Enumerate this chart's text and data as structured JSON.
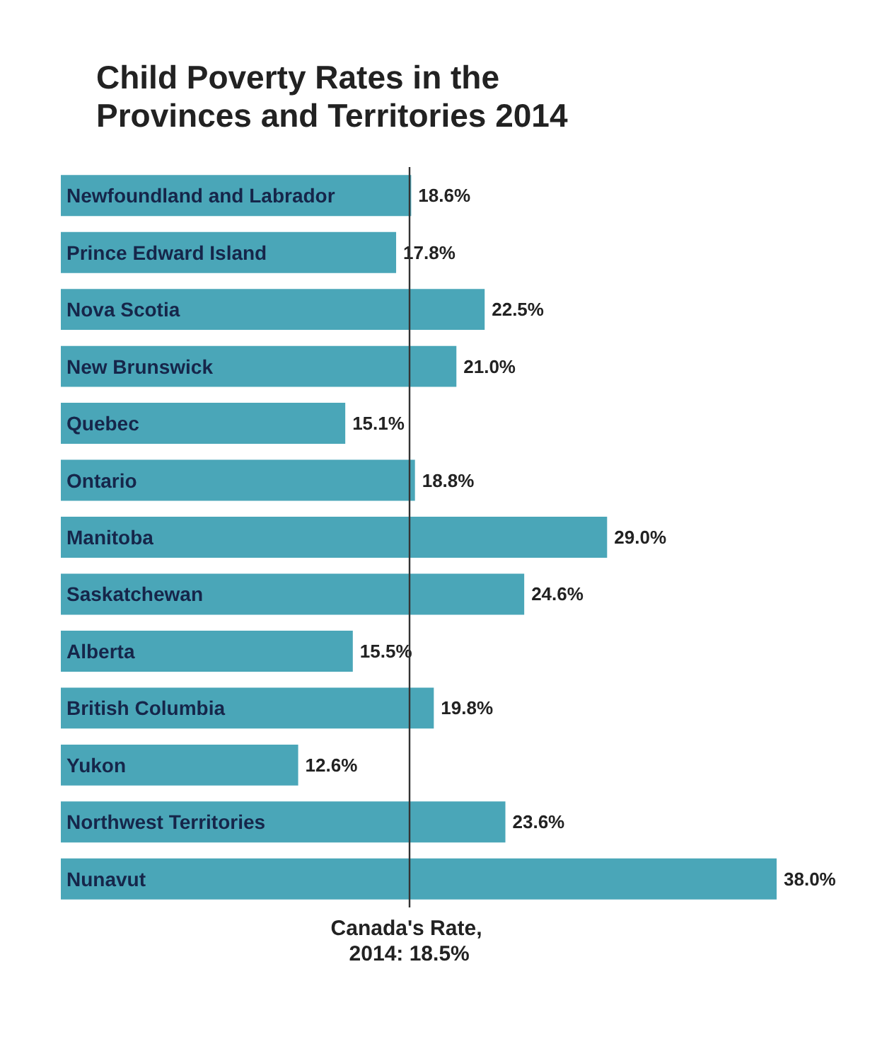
{
  "chart_data": {
    "type": "bar",
    "orientation": "horizontal",
    "title": "Child Poverty Rates in the Provinces and Territories 2014",
    "categories": [
      "Newfoundland and Labrador",
      "Prince Edward Island",
      "Nova Scotia",
      "New Brunswick",
      "Quebec",
      "Ontario",
      "Manitoba",
      "Saskatchewan",
      "Alberta",
      "British Columbia",
      "Yukon",
      "Northwest Territories",
      "Nunavut"
    ],
    "values": [
      18.6,
      17.8,
      22.5,
      21.0,
      15.1,
      18.8,
      29.0,
      24.6,
      15.5,
      19.8,
      12.6,
      23.6,
      38.0
    ],
    "value_labels": [
      "18.6%",
      "17.8%",
      "22.5%",
      "21.0%",
      "15.1%",
      "18.8%",
      "29.0%",
      "24.6%",
      "15.5%",
      "19.8%",
      "12.6%",
      "23.6%",
      "38.0%"
    ],
    "color": "#4aa6b8",
    "ref_lines": [
      {
        "axis": "x",
        "value": 18.5,
        "label": "Canada's Rate, 2014: 18.5%",
        "color": "#333333"
      }
    ]
  }
}
